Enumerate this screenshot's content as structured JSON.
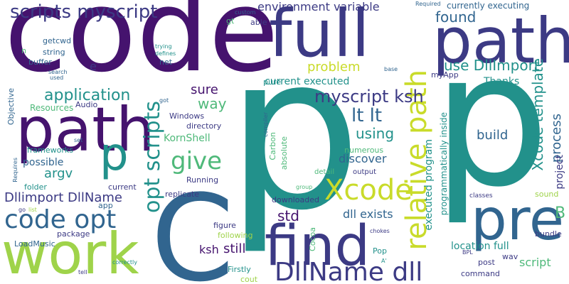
{
  "palette": {
    "dark_purple": "#45136e",
    "indigo": "#3c3a84",
    "blue": "#31658f",
    "teal": "#22918b",
    "green": "#4fb97a",
    "lime": "#9fd34a",
    "yellow_green": "#c9db2a"
  },
  "words": [
    {
      "text": "code"
    },
    {
      "text": "p"
    },
    {
      "text": "p"
    },
    {
      "text": "full"
    },
    {
      "text": "path"
    },
    {
      "text": "path"
    },
    {
      "text": "work"
    },
    {
      "text": "C"
    },
    {
      "text": "find"
    },
    {
      "text": "pre"
    },
    {
      "text": "Xcode"
    },
    {
      "text": "DllName dll"
    },
    {
      "text": "relative path"
    },
    {
      "text": "opt scripts"
    },
    {
      "text": "code opt"
    },
    {
      "text": "give"
    },
    {
      "text": "p"
    },
    {
      "text": "scripts myscript"
    },
    {
      "text": "myscript ksh"
    },
    {
      "text": "application"
    },
    {
      "text": "Xcode template"
    },
    {
      "text": "lt lt"
    },
    {
      "text": "environment variable"
    },
    {
      "text": "found"
    },
    {
      "text": "use DllImport"
    },
    {
      "text": "problem"
    },
    {
      "text": "current executed"
    },
    {
      "text": "sure"
    },
    {
      "text": "way"
    },
    {
      "text": "argv"
    },
    {
      "text": "using"
    },
    {
      "text": "Dllimport DllName"
    },
    {
      "text": "possible"
    },
    {
      "text": "discover"
    },
    {
      "text": "executed program"
    },
    {
      "text": "process"
    },
    {
      "text": "build"
    },
    {
      "text": "KornShell"
    },
    {
      "text": "location full"
    },
    {
      "text": "script"
    },
    {
      "text": "std"
    },
    {
      "text": "dll exists"
    },
    {
      "text": "still"
    },
    {
      "text": "ksh"
    },
    {
      "text": "Thanks"
    },
    {
      "text": "project"
    },
    {
      "text": "B"
    },
    {
      "text": "currently executing"
    },
    {
      "text": "Resources"
    },
    {
      "text": "Objective"
    },
    {
      "text": "frameworks"
    },
    {
      "text": "folder"
    },
    {
      "text": "LoadMusic"
    },
    {
      "text": "package"
    },
    {
      "text": "Running"
    },
    {
      "text": "replicate"
    },
    {
      "text": "downloaded"
    },
    {
      "text": "Windows"
    },
    {
      "text": "directory"
    },
    {
      "text": "current"
    },
    {
      "text": "Carbon"
    },
    {
      "text": "absolute"
    },
    {
      "text": "numerous"
    },
    {
      "text": "detail"
    },
    {
      "text": "output"
    },
    {
      "text": "programmatically inside"
    },
    {
      "text": "figure"
    },
    {
      "text": "following"
    },
    {
      "text": "Cocoa"
    },
    {
      "text": "Firstly"
    },
    {
      "text": "cout"
    },
    {
      "text": "Pop"
    },
    {
      "text": "wav"
    },
    {
      "text": "post"
    },
    {
      "text": "command"
    },
    {
      "text": "bundle"
    },
    {
      "text": "sound"
    },
    {
      "text": "classes"
    },
    {
      "text": "myApp"
    },
    {
      "text": "getcwd"
    },
    {
      "text": "string"
    },
    {
      "text": "buffer"
    },
    {
      "text": "net"
    },
    {
      "text": "pure"
    },
    {
      "text": "able"
    },
    {
      "text": "gt"
    },
    {
      "text": "custom"
    },
    {
      "text": "Required"
    },
    {
      "text": "trying"
    },
    {
      "text": "defines"
    },
    {
      "text": "search"
    },
    {
      "text": "used"
    },
    {
      "text": "base"
    },
    {
      "text": "Audio"
    },
    {
      "text": "got"
    },
    {
      "text": "compiler"
    },
    {
      "text": "set"
    },
    {
      "text": "Requires"
    },
    {
      "text": "go"
    },
    {
      "text": "list"
    },
    {
      "text": "app"
    },
    {
      "text": "tell"
    },
    {
      "text": "correctly"
    },
    {
      "text": "A'"
    },
    {
      "text": "chokes"
    },
    {
      "text": "group"
    },
    {
      "text": "BPL"
    },
    {
      "text": "e"
    },
    {
      "text": "n"
    }
  ]
}
